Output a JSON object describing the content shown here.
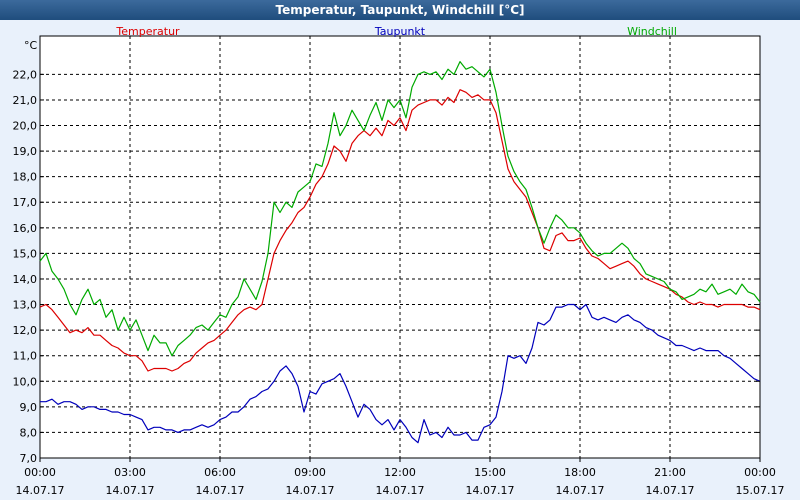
{
  "window": {
    "title": "Temperatur, Taupunkt, Windchill [°C]"
  },
  "chart_data": {
    "type": "line",
    "title": "Temperatur, Taupunkt, Windchill [°C]",
    "ylabel": "°C",
    "xlabel": "",
    "ylim": [
      7.0,
      23.5
    ],
    "xlim": [
      0,
      24
    ],
    "y_ticks": [
      7.0,
      8.0,
      9.0,
      10.0,
      11.0,
      12.0,
      13.0,
      14.0,
      15.0,
      16.0,
      17.0,
      18.0,
      19.0,
      20.0,
      21.0,
      22.0
    ],
    "y_tick_labels": [
      "7,0",
      "8,0",
      "9,0",
      "10,0",
      "11,0",
      "12,0",
      "13,0",
      "14,0",
      "15,0",
      "16,0",
      "17,0",
      "18,0",
      "19,0",
      "20,0",
      "21,0",
      "22,0"
    ],
    "x_ticks": [
      {
        "hour": 0,
        "time": "00:00",
        "date": "14.07.17"
      },
      {
        "hour": 3,
        "time": "03:00",
        "date": "14.07.17"
      },
      {
        "hour": 6,
        "time": "06:00",
        "date": "14.07.17"
      },
      {
        "hour": 9,
        "time": "09:00",
        "date": "14.07.17"
      },
      {
        "hour": 12,
        "time": "12:00",
        "date": "14.07.17"
      },
      {
        "hour": 15,
        "time": "15:00",
        "date": "14.07.17"
      },
      {
        "hour": 18,
        "time": "18:00",
        "date": "14.07.17"
      },
      {
        "hour": 21,
        "time": "21:00",
        "date": "14.07.17"
      },
      {
        "hour": 24,
        "time": "00:00",
        "date": "15.07.17"
      }
    ],
    "grid": true,
    "series": [
      {
        "name": "Temperatur",
        "color": "#dd0000",
        "legend_position": "top-left",
        "x": [
          0,
          0.2,
          0.4,
          0.6,
          0.8,
          1,
          1.2,
          1.4,
          1.6,
          1.8,
          2,
          2.2,
          2.4,
          2.6,
          2.8,
          3,
          3.2,
          3.4,
          3.6,
          3.8,
          4,
          4.2,
          4.4,
          4.6,
          4.8,
          5,
          5.2,
          5.4,
          5.6,
          5.8,
          6,
          6.2,
          6.4,
          6.6,
          6.8,
          7,
          7.2,
          7.4,
          7.6,
          7.8,
          8,
          8.2,
          8.4,
          8.6,
          8.8,
          9,
          9.2,
          9.4,
          9.6,
          9.8,
          10,
          10.2,
          10.4,
          10.6,
          10.8,
          11,
          11.2,
          11.4,
          11.6,
          11.8,
          12,
          12.2,
          12.4,
          12.6,
          12.8,
          13,
          13.2,
          13.4,
          13.6,
          13.8,
          14,
          14.2,
          14.4,
          14.6,
          14.8,
          15,
          15.2,
          15.4,
          15.6,
          15.8,
          16,
          16.2,
          16.4,
          16.6,
          16.8,
          17,
          17.2,
          17.4,
          17.6,
          17.8,
          18,
          18.2,
          18.4,
          18.6,
          18.8,
          19,
          19.2,
          19.4,
          19.6,
          19.8,
          20,
          20.2,
          20.4,
          20.6,
          20.8,
          21,
          21.2,
          21.4,
          21.6,
          21.8,
          22,
          22.2,
          22.4,
          22.6,
          22.8,
          23,
          23.2,
          23.4,
          23.6,
          23.8,
          24
        ],
        "values": [
          12.9,
          13.0,
          12.8,
          12.5,
          12.2,
          11.9,
          12.0,
          11.9,
          12.1,
          11.8,
          11.8,
          11.6,
          11.4,
          11.3,
          11.1,
          11.0,
          11.0,
          10.8,
          10.4,
          10.5,
          10.5,
          10.5,
          10.4,
          10.5,
          10.7,
          10.8,
          11.1,
          11.3,
          11.5,
          11.6,
          11.8,
          12.0,
          12.3,
          12.6,
          12.8,
          12.9,
          12.8,
          13.0,
          14.0,
          15.0,
          15.5,
          15.9,
          16.2,
          16.6,
          16.8,
          17.2,
          17.7,
          18.0,
          18.5,
          19.2,
          19.0,
          18.6,
          19.3,
          19.6,
          19.8,
          19.6,
          19.9,
          19.6,
          20.2,
          20.0,
          20.3,
          19.8,
          20.6,
          20.8,
          20.9,
          21.0,
          21.0,
          20.8,
          21.1,
          20.9,
          21.4,
          21.3,
          21.1,
          21.2,
          21.0,
          21.0,
          20.5,
          19.4,
          18.3,
          17.8,
          17.5,
          17.2,
          16.6,
          16.0,
          15.2,
          15.1,
          15.7,
          15.8,
          15.5,
          15.5,
          15.6,
          15.2,
          14.9,
          14.8,
          14.6,
          14.4,
          14.5,
          14.6,
          14.7,
          14.5,
          14.2,
          14.0,
          13.9,
          13.8,
          13.7,
          13.6,
          13.4,
          13.3,
          13.1,
          13.0,
          13.1,
          13.0,
          13.0,
          12.9,
          13.0,
          13.0,
          13.0,
          13.0,
          12.9,
          12.9,
          12.8
        ]
      },
      {
        "name": "Taupunkt",
        "color": "#0000bb",
        "legend_position": "top-center",
        "x": [
          0,
          0.2,
          0.4,
          0.6,
          0.8,
          1,
          1.2,
          1.4,
          1.6,
          1.8,
          2,
          2.2,
          2.4,
          2.6,
          2.8,
          3,
          3.2,
          3.4,
          3.6,
          3.8,
          4,
          4.2,
          4.4,
          4.6,
          4.8,
          5,
          5.2,
          5.4,
          5.6,
          5.8,
          6,
          6.2,
          6.4,
          6.6,
          6.8,
          7,
          7.2,
          7.4,
          7.6,
          7.8,
          8,
          8.2,
          8.4,
          8.6,
          8.8,
          9,
          9.2,
          9.4,
          9.6,
          9.8,
          10,
          10.2,
          10.4,
          10.6,
          10.8,
          11,
          11.2,
          11.4,
          11.6,
          11.8,
          12,
          12.2,
          12.4,
          12.6,
          12.8,
          13,
          13.2,
          13.4,
          13.6,
          13.8,
          14,
          14.2,
          14.4,
          14.6,
          14.8,
          15,
          15.2,
          15.4,
          15.6,
          15.8,
          16,
          16.2,
          16.4,
          16.6,
          16.8,
          17,
          17.2,
          17.4,
          17.6,
          17.8,
          18,
          18.2,
          18.4,
          18.6,
          18.8,
          19,
          19.2,
          19.4,
          19.6,
          19.8,
          20,
          20.2,
          20.4,
          20.6,
          20.8,
          21,
          21.2,
          21.4,
          21.6,
          21.8,
          22,
          22.2,
          22.4,
          22.6,
          22.8,
          23,
          23.2,
          23.4,
          23.6,
          23.8,
          24
        ],
        "values": [
          9.2,
          9.2,
          9.3,
          9.1,
          9.2,
          9.2,
          9.1,
          8.9,
          9.0,
          9.0,
          8.9,
          8.9,
          8.8,
          8.8,
          8.7,
          8.7,
          8.6,
          8.5,
          8.1,
          8.2,
          8.2,
          8.1,
          8.1,
          8.0,
          8.1,
          8.1,
          8.2,
          8.3,
          8.2,
          8.3,
          8.5,
          8.6,
          8.8,
          8.8,
          9.0,
          9.3,
          9.4,
          9.6,
          9.7,
          10.0,
          10.4,
          10.6,
          10.3,
          9.8,
          8.8,
          9.6,
          9.5,
          9.9,
          10.0,
          10.1,
          10.3,
          9.8,
          9.2,
          8.6,
          9.1,
          8.9,
          8.5,
          8.3,
          8.5,
          8.1,
          8.5,
          8.2,
          7.8,
          7.6,
          8.5,
          7.9,
          8.0,
          7.8,
          8.2,
          7.9,
          7.9,
          8.0,
          7.7,
          7.7,
          8.2,
          8.3,
          8.6,
          9.6,
          11.0,
          10.9,
          11.0,
          10.7,
          11.3,
          12.3,
          12.2,
          12.4,
          12.9,
          12.9,
          13.0,
          13.0,
          12.8,
          13.0,
          12.5,
          12.4,
          12.5,
          12.4,
          12.3,
          12.5,
          12.6,
          12.4,
          12.3,
          12.1,
          12.0,
          11.8,
          11.7,
          11.6,
          11.4,
          11.4,
          11.3,
          11.2,
          11.3,
          11.2,
          11.2,
          11.2,
          11.0,
          10.9,
          10.7,
          10.5,
          10.3,
          10.1,
          10.0
        ]
      },
      {
        "name": "Windchill",
        "color": "#00aa00",
        "legend_position": "top-right",
        "x": [
          0,
          0.2,
          0.4,
          0.6,
          0.8,
          1,
          1.2,
          1.4,
          1.6,
          1.8,
          2,
          2.2,
          2.4,
          2.6,
          2.8,
          3,
          3.2,
          3.4,
          3.6,
          3.8,
          4,
          4.2,
          4.4,
          4.6,
          4.8,
          5,
          5.2,
          5.4,
          5.6,
          5.8,
          6,
          6.2,
          6.4,
          6.6,
          6.8,
          7,
          7.2,
          7.4,
          7.6,
          7.8,
          8,
          8.2,
          8.4,
          8.6,
          8.8,
          9,
          9.2,
          9.4,
          9.6,
          9.8,
          10,
          10.2,
          10.4,
          10.6,
          10.8,
          11,
          11.2,
          11.4,
          11.6,
          11.8,
          12,
          12.2,
          12.4,
          12.6,
          12.8,
          13,
          13.2,
          13.4,
          13.6,
          13.8,
          14,
          14.2,
          14.4,
          14.6,
          14.8,
          15,
          15.2,
          15.4,
          15.6,
          15.8,
          16,
          16.2,
          16.4,
          16.6,
          16.8,
          17,
          17.2,
          17.4,
          17.6,
          17.8,
          18,
          18.2,
          18.4,
          18.6,
          18.8,
          19,
          19.2,
          19.4,
          19.6,
          19.8,
          20,
          20.2,
          20.4,
          20.6,
          20.8,
          21,
          21.2,
          21.4,
          21.6,
          21.8,
          22,
          22.2,
          22.4,
          22.6,
          22.8,
          23,
          23.2,
          23.4,
          23.6,
          23.8,
          24
        ],
        "values": [
          14.7,
          15.0,
          14.3,
          14.0,
          13.6,
          13.0,
          12.6,
          13.2,
          13.6,
          13.0,
          13.2,
          12.5,
          12.8,
          12.0,
          12.5,
          12.0,
          12.4,
          11.8,
          11.2,
          11.8,
          11.5,
          11.5,
          11.0,
          11.4,
          11.6,
          11.8,
          12.1,
          12.2,
          12.0,
          12.3,
          12.6,
          12.5,
          13.0,
          13.3,
          14.0,
          13.6,
          13.2,
          13.9,
          15.0,
          17.0,
          16.6,
          17.0,
          16.8,
          17.4,
          17.6,
          17.8,
          18.5,
          18.4,
          19.3,
          20.5,
          19.6,
          20.0,
          20.6,
          20.2,
          19.8,
          20.4,
          20.9,
          20.2,
          21.0,
          20.7,
          21.0,
          20.3,
          21.5,
          22.0,
          22.1,
          22.0,
          22.1,
          21.8,
          22.2,
          22.0,
          22.5,
          22.2,
          22.3,
          22.1,
          21.9,
          22.2,
          21.3,
          20.0,
          18.8,
          18.2,
          17.8,
          17.5,
          16.8,
          16.0,
          15.4,
          16.0,
          16.5,
          16.3,
          16.0,
          16.0,
          15.8,
          15.4,
          15.1,
          14.9,
          15.0,
          15.0,
          15.2,
          15.4,
          15.2,
          14.8,
          14.6,
          14.2,
          14.1,
          14.0,
          13.9,
          13.6,
          13.5,
          13.2,
          13.3,
          13.4,
          13.6,
          13.5,
          13.8,
          13.4,
          13.5,
          13.6,
          13.4,
          13.8,
          13.5,
          13.4,
          13.1
        ]
      }
    ]
  }
}
